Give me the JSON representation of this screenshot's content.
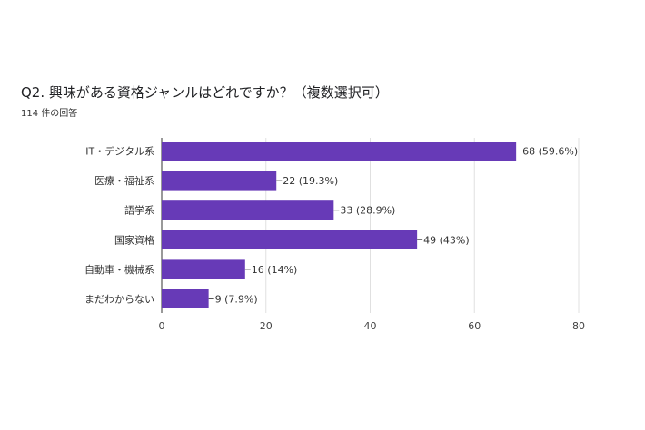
{
  "header": {
    "title": "Q2. 興味がある資格ジャンルはどれですか？（複数選択可）",
    "response_count": "114 件の回答"
  },
  "chart_data": {
    "type": "bar",
    "orientation": "horizontal",
    "title": "Q2. 興味がある資格ジャンルはどれですか？（複数選択可）",
    "subtitle": "114 件の回答",
    "categories": [
      "IT・デジタル系",
      "医療・福祉系",
      "語学系",
      "国家資格",
      "自動車・機械系",
      "まだわからない"
    ],
    "values": [
      68,
      22,
      33,
      49,
      16,
      9
    ],
    "data_labels": [
      "68 (59.6%)",
      "22 (19.3%)",
      "33 (28.9%)",
      "49 (43%)",
      "16 (14%)",
      "9 (7.9%)"
    ],
    "xlim": [
      0,
      80
    ],
    "xticks": [
      0,
      20,
      40,
      60,
      80
    ],
    "grid": true,
    "bar_color": "#673ab7"
  }
}
